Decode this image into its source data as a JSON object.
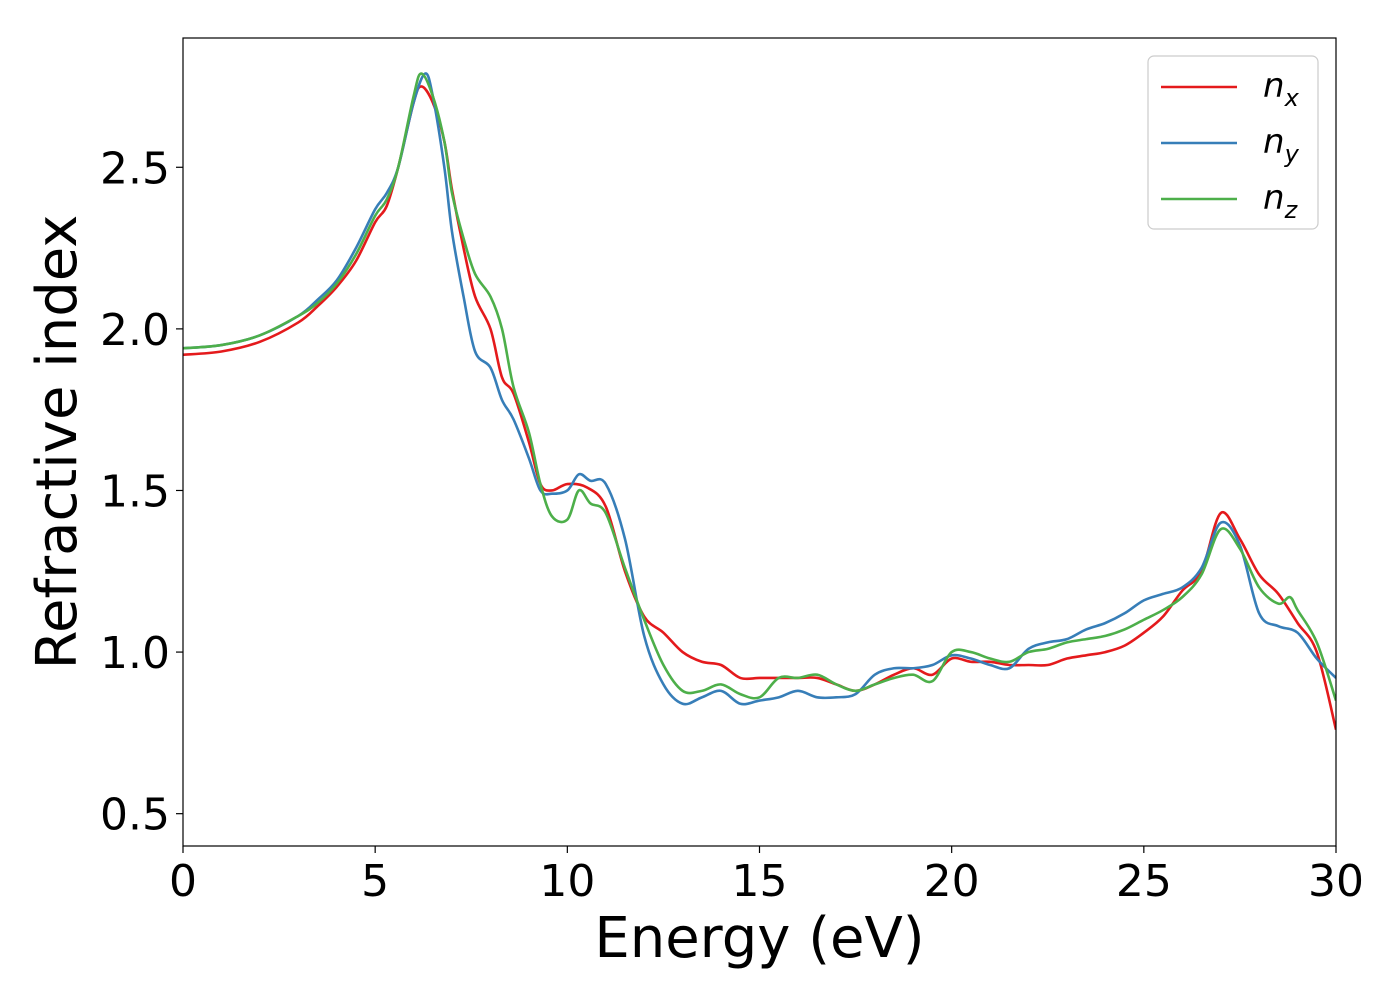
{
  "chart_data": {
    "type": "line",
    "title": "",
    "xlabel": "Energy (eV)",
    "ylabel": "Refractive index",
    "xlim": [
      0,
      30
    ],
    "ylim": [
      0.4,
      2.9
    ],
    "xticks": [
      0,
      5,
      10,
      15,
      20,
      25,
      30
    ],
    "yticks": [
      0.5,
      1.0,
      1.5,
      2.0,
      2.5
    ],
    "xtick_labels": [
      "0",
      "5",
      "10",
      "15",
      "20",
      "25",
      "30"
    ],
    "ytick_labels": [
      "0.5",
      "1.0",
      "1.5",
      "2.0",
      "2.5"
    ],
    "grid": false,
    "legend_position": "top-right",
    "series": [
      {
        "name": "n",
        "subscript": "x",
        "color": "#e41a1c",
        "x": [
          0,
          1,
          2,
          3,
          3.5,
          4,
          4.5,
          5,
          5.3,
          5.6,
          6.0,
          6.2,
          6.5,
          6.8,
          7.0,
          7.3,
          7.6,
          8.0,
          8.3,
          8.6,
          9.0,
          9.3,
          9.6,
          10.0,
          10.5,
          11.0,
          11.5,
          12.0,
          12.5,
          13.0,
          13.5,
          14.0,
          14.5,
          15.0,
          15.5,
          16.0,
          16.5,
          17.0,
          17.5,
          18.0,
          18.5,
          19.0,
          19.5,
          20.0,
          20.5,
          21.0,
          21.5,
          22.0,
          22.5,
          23.0,
          23.5,
          24.0,
          24.5,
          25.0,
          25.5,
          26.0,
          26.5,
          27.0,
          27.5,
          28.0,
          28.5,
          29.0,
          29.5,
          30.0
        ],
        "y": [
          1.92,
          1.93,
          1.96,
          2.02,
          2.07,
          2.13,
          2.21,
          2.33,
          2.38,
          2.5,
          2.7,
          2.75,
          2.7,
          2.58,
          2.43,
          2.25,
          2.1,
          2.0,
          1.85,
          1.8,
          1.65,
          1.52,
          1.5,
          1.52,
          1.51,
          1.45,
          1.25,
          1.11,
          1.06,
          1.0,
          0.97,
          0.96,
          0.92,
          0.92,
          0.92,
          0.92,
          0.92,
          0.9,
          0.88,
          0.9,
          0.93,
          0.95,
          0.93,
          0.98,
          0.97,
          0.97,
          0.96,
          0.96,
          0.96,
          0.98,
          0.99,
          1.0,
          1.02,
          1.06,
          1.11,
          1.19,
          1.25,
          1.43,
          1.35,
          1.24,
          1.18,
          1.09,
          1.0,
          0.76
        ]
      },
      {
        "name": "n",
        "subscript": "y",
        "color": "#377eb8",
        "x": [
          0,
          1,
          2,
          3,
          3.5,
          4,
          4.5,
          5,
          5.3,
          5.6,
          6.0,
          6.3,
          6.5,
          6.8,
          7.0,
          7.3,
          7.6,
          8.0,
          8.3,
          8.6,
          9.0,
          9.3,
          9.6,
          10.0,
          10.3,
          10.6,
          11.0,
          11.5,
          12.0,
          12.5,
          13.0,
          13.5,
          14.0,
          14.5,
          15.0,
          15.5,
          16.0,
          16.5,
          17.0,
          17.5,
          18.0,
          18.5,
          19.0,
          19.5,
          20.0,
          20.5,
          21.0,
          21.5,
          22.0,
          22.5,
          23.0,
          23.5,
          24.0,
          24.5,
          25.0,
          25.5,
          26.0,
          26.5,
          27.0,
          27.5,
          28.0,
          28.5,
          29.0,
          29.5,
          30.0
        ],
        "y": [
          1.94,
          1.95,
          1.98,
          2.04,
          2.09,
          2.15,
          2.25,
          2.37,
          2.42,
          2.5,
          2.7,
          2.79,
          2.72,
          2.5,
          2.3,
          2.1,
          1.93,
          1.88,
          1.78,
          1.72,
          1.6,
          1.5,
          1.49,
          1.5,
          1.55,
          1.53,
          1.52,
          1.35,
          1.05,
          0.9,
          0.84,
          0.86,
          0.88,
          0.84,
          0.85,
          0.86,
          0.88,
          0.86,
          0.86,
          0.87,
          0.93,
          0.95,
          0.95,
          0.96,
          0.99,
          0.98,
          0.96,
          0.95,
          1.01,
          1.03,
          1.04,
          1.07,
          1.09,
          1.12,
          1.16,
          1.18,
          1.2,
          1.26,
          1.4,
          1.33,
          1.12,
          1.08,
          1.06,
          0.98,
          0.92
        ]
      },
      {
        "name": "n",
        "subscript": "z",
        "color": "#4daf4a",
        "x": [
          0,
          1,
          2,
          3,
          3.5,
          4,
          4.5,
          5,
          5.3,
          5.6,
          6.0,
          6.2,
          6.5,
          6.8,
          7.0,
          7.3,
          7.6,
          8.0,
          8.3,
          8.6,
          9.0,
          9.3,
          9.6,
          10.0,
          10.3,
          10.6,
          11.0,
          11.5,
          12.0,
          12.5,
          13.0,
          13.5,
          14.0,
          14.5,
          15.0,
          15.5,
          16.0,
          16.5,
          17.0,
          17.5,
          18.0,
          18.5,
          19.0,
          19.5,
          20.0,
          20.5,
          21.0,
          21.5,
          22.0,
          22.5,
          23.0,
          23.5,
          24.0,
          24.5,
          25.0,
          25.5,
          26.0,
          26.5,
          27.0,
          27.5,
          28.0,
          28.5,
          28.8,
          29.0,
          29.5,
          30.0
        ],
        "y": [
          1.94,
          1.95,
          1.98,
          2.04,
          2.08,
          2.14,
          2.23,
          2.35,
          2.4,
          2.5,
          2.72,
          2.79,
          2.72,
          2.58,
          2.42,
          2.28,
          2.17,
          2.1,
          2.0,
          1.82,
          1.68,
          1.52,
          1.42,
          1.41,
          1.5,
          1.46,
          1.43,
          1.26,
          1.1,
          0.96,
          0.88,
          0.88,
          0.9,
          0.87,
          0.86,
          0.92,
          0.92,
          0.93,
          0.9,
          0.88,
          0.9,
          0.92,
          0.93,
          0.91,
          1.0,
          1.0,
          0.98,
          0.97,
          1.0,
          1.01,
          1.03,
          1.04,
          1.05,
          1.07,
          1.1,
          1.13,
          1.17,
          1.24,
          1.38,
          1.32,
          1.2,
          1.15,
          1.17,
          1.13,
          1.03,
          0.85
        ]
      }
    ]
  }
}
